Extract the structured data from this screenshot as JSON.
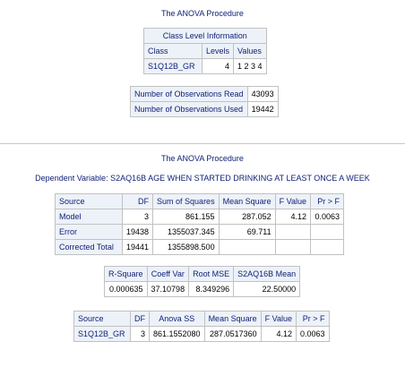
{
  "title1": "The ANOVA Procedure",
  "class_info": {
    "caption": "Class Level Information",
    "headers": [
      "Class",
      "Levels",
      "Values"
    ],
    "rows": [
      [
        "S1Q12B_GR",
        "4",
        "1 2 3 4"
      ]
    ]
  },
  "nobs": {
    "rows": [
      [
        "Number of Observations Read",
        "43093"
      ],
      [
        "Number of Observations Used",
        "19442"
      ]
    ]
  },
  "title2": "The ANOVA Procedure",
  "dependent": "Dependent Variable: S2AQ16B AGE WHEN STARTED DRINKING AT LEAST ONCE A WEEK",
  "anova": {
    "headers": [
      "Source",
      "DF",
      "Sum of Squares",
      "Mean Square",
      "F Value",
      "Pr > F"
    ],
    "rows": [
      [
        "Model",
        "3",
        "861.155",
        "287.052",
        "4.12",
        "0.0063"
      ],
      [
        "Error",
        "19438",
        "1355037.345",
        "69.711",
        "",
        ""
      ],
      [
        "Corrected Total",
        "19441",
        "1355898.500",
        "",
        "",
        ""
      ]
    ]
  },
  "fit": {
    "headers": [
      "R-Square",
      "Coeff Var",
      "Root MSE",
      "S2AQ16B Mean"
    ],
    "row": [
      "0.000635",
      "37.10798",
      "8.349296",
      "22.50000"
    ]
  },
  "type_anova": {
    "headers": [
      "Source",
      "DF",
      "Anova SS",
      "Mean Square",
      "F Value",
      "Pr > F"
    ],
    "row": [
      "S1Q12B_GR",
      "3",
      "861.1552080",
      "287.0517360",
      "4.12",
      "0.0063"
    ]
  },
  "colors": {
    "header_bg": "#edf2f9",
    "header_text": "#112277",
    "border": "#c1c1c1"
  }
}
